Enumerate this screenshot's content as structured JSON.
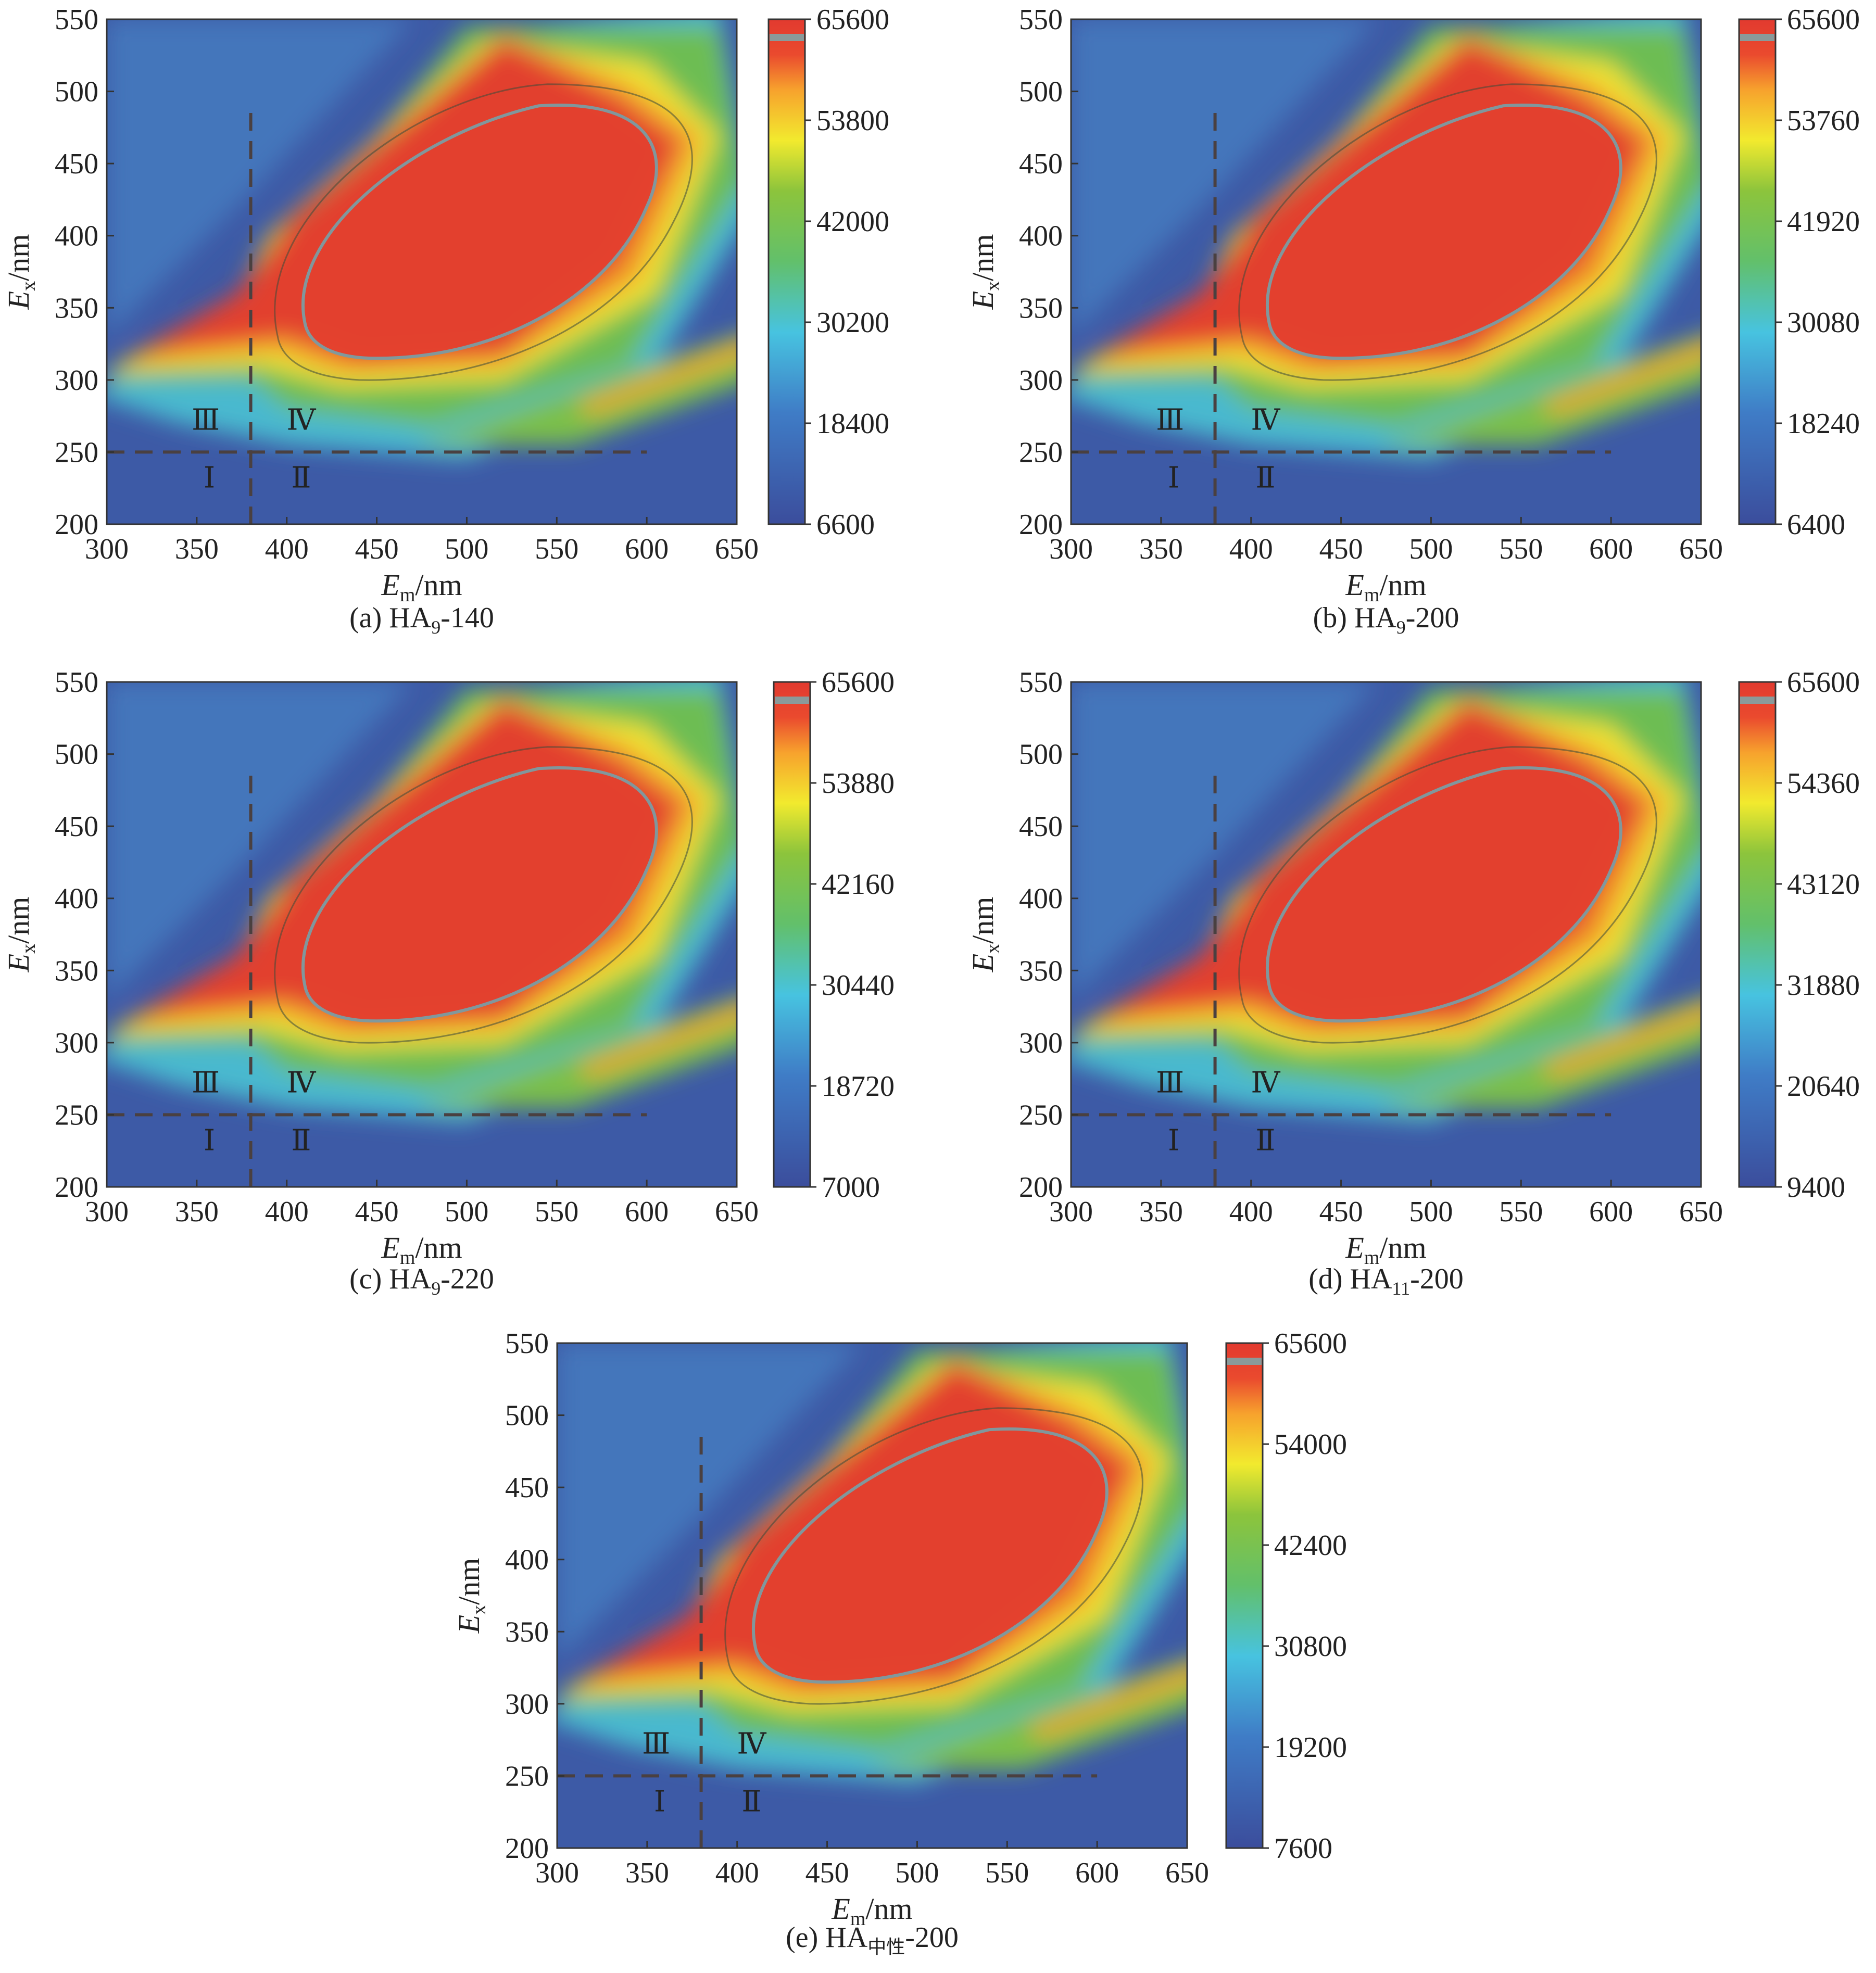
{
  "figure": {
    "panels": [
      {
        "id": "a",
        "caption": {
          "prefix": "(a) HA",
          "sub": "9",
          "suffix": "-140"
        },
        "colorbar": {
          "min": 6600,
          "max": 65600,
          "ticks": [
            "65600",
            "53800",
            "42000",
            "30200",
            "18400",
            "6600"
          ]
        }
      },
      {
        "id": "b",
        "caption": {
          "prefix": "(b) HA",
          "sub": "9",
          "suffix": "-200"
        },
        "colorbar": {
          "min": 6400,
          "max": 65600,
          "ticks": [
            "65600",
            "53760",
            "41920",
            "30080",
            "18240",
            "6400"
          ]
        }
      },
      {
        "id": "c",
        "caption": {
          "prefix": "(c) HA",
          "sub": "9",
          "suffix": "-220"
        },
        "colorbar": {
          "min": 7000,
          "max": 65600,
          "ticks": [
            "65600",
            "53880",
            "42160",
            "30440",
            "18720",
            "7000"
          ]
        }
      },
      {
        "id": "d",
        "caption": {
          "prefix": "(d) HA",
          "sub": "11",
          "suffix": "-200"
        },
        "colorbar": {
          "min": 9400,
          "max": 65600,
          "ticks": [
            "65600",
            "54360",
            "43120",
            "31880",
            "20640",
            "9400"
          ]
        }
      },
      {
        "id": "e",
        "caption": {
          "prefix": "(e) HA",
          "sub": "中性",
          "suffix": "-200"
        },
        "colorbar": {
          "min": 7600,
          "max": 65600,
          "ticks": [
            "65600",
            "54000",
            "42400",
            "30800",
            "19200",
            "7600"
          ]
        }
      }
    ]
  },
  "chart_data": {
    "type": "heatmap",
    "title": "",
    "xlabel": {
      "symbol": "E",
      "sub": "m",
      "unit": "/nm"
    },
    "ylabel": {
      "symbol": "E",
      "sub": "x",
      "unit": "/nm"
    },
    "xlim": [
      300,
      650
    ],
    "ylim": [
      200,
      550
    ],
    "x_ticks": [
      "300",
      "350",
      "400",
      "450",
      "500",
      "550",
      "600",
      "650"
    ],
    "y_ticks": [
      "550",
      "500",
      "450",
      "400",
      "350",
      "300",
      "250",
      "200"
    ],
    "region_divider": {
      "em": 380,
      "ex": 250,
      "em_end": 600,
      "ex_end": 490
    },
    "regions": [
      {
        "label": "Ⅲ",
        "em": 355,
        "ex": 272
      },
      {
        "label": "Ⅳ",
        "em": 408,
        "ex": 272
      },
      {
        "label": "Ⅰ",
        "em": 357,
        "ex": 232
      },
      {
        "label": "Ⅱ",
        "em": 408,
        "ex": 232
      }
    ],
    "peaks": [
      {
        "name": "main",
        "em": 500,
        "ex": 400,
        "intensity": "max"
      },
      {
        "name": "secondary-band",
        "em": 600,
        "ex": 300,
        "intensity": "medium"
      }
    ]
  }
}
